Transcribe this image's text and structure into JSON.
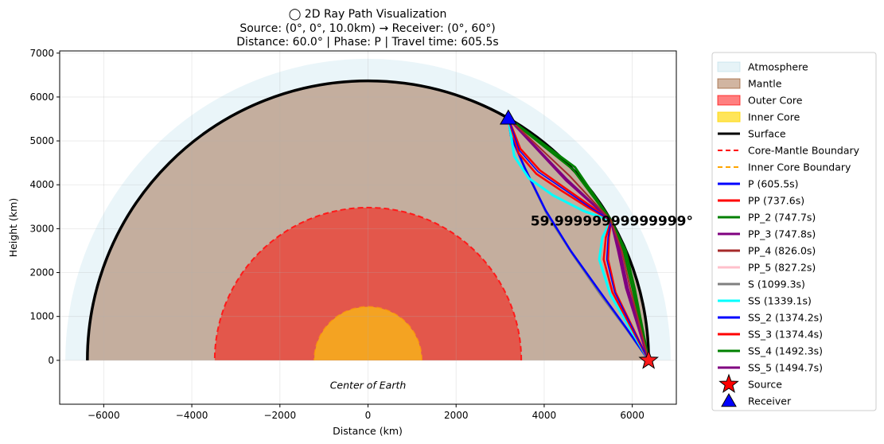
{
  "title": {
    "line1": "◯ 2D Ray Path Visualization",
    "line2": "Source: (0°, 0°, 10.0km) → Receiver: (0°, 60°)",
    "line3": "Distance: 60.0° | Phase: P | Travel time: 605.5s"
  },
  "chart_data": {
    "type": "line",
    "xlabel": "Distance (km)",
    "ylabel": "Height (km)",
    "xlim": [
      -7000,
      7000
    ],
    "ylim": [
      -1000,
      7050
    ],
    "xticks": [
      -6000,
      -4000,
      -2000,
      0,
      2000,
      4000,
      6000
    ],
    "yticks": [
      0,
      1000,
      2000,
      3000,
      4000,
      5000,
      6000,
      7000
    ],
    "grid": true,
    "legend_position": "outside-right",
    "earth": {
      "surface_radius_km": 6371,
      "atmosphere_radius_km": 6871,
      "cmb_radius_km": 3480,
      "inner_core_radius_km": 1220
    },
    "source": {
      "x": 6371,
      "y": 0
    },
    "receiver": {
      "x": 3186,
      "y": 5517
    },
    "distance_annotation": {
      "text": "59.99999999999999°",
      "x": 3690,
      "y": 3180
    },
    "center_label": {
      "text": "Center of Earth",
      "x": 0,
      "y": -650
    },
    "legend": [
      {
        "label": "Atmosphere",
        "kind": "patch",
        "color": "#add8e6",
        "opacity": 0.3
      },
      {
        "label": "Mantle",
        "kind": "patch",
        "color": "#8b4513",
        "opacity": 0.4
      },
      {
        "label": "Outer Core",
        "kind": "patch",
        "color": "#ff0000",
        "opacity": 0.5
      },
      {
        "label": "Inner Core",
        "kind": "patch",
        "color": "#ffd700",
        "opacity": 0.65
      },
      {
        "label": "Surface",
        "kind": "line",
        "color": "#000000",
        "width": 3
      },
      {
        "label": "Core-Mantle Boundary",
        "kind": "dash",
        "color": "#ff0000",
        "width": 2
      },
      {
        "label": "Inner Core Boundary",
        "kind": "dash",
        "color": "#ffa500",
        "width": 2
      },
      {
        "label": "P (605.5s)",
        "kind": "line",
        "color": "#0000ff",
        "width": 3
      },
      {
        "label": "PP (737.6s)",
        "kind": "line",
        "color": "#ff0000",
        "width": 3
      },
      {
        "label": "PP_2 (747.7s)",
        "kind": "line",
        "color": "#008000",
        "width": 3
      },
      {
        "label": "PP_3 (747.8s)",
        "kind": "line",
        "color": "#800080",
        "width": 3
      },
      {
        "label": "PP_4 (826.0s)",
        "kind": "line",
        "color": "#a52a2a",
        "width": 3
      },
      {
        "label": "PP_5 (827.2s)",
        "kind": "line",
        "color": "#ffc0cb",
        "width": 3
      },
      {
        "label": "S (1099.3s)",
        "kind": "line",
        "color": "#808080",
        "width": 3
      },
      {
        "label": "SS (1339.1s)",
        "kind": "line",
        "color": "#00ffff",
        "width": 3
      },
      {
        "label": "SS_2 (1374.2s)",
        "kind": "line",
        "color": "#0000ff",
        "width": 3
      },
      {
        "label": "SS_3 (1374.4s)",
        "kind": "line",
        "color": "#ff0000",
        "width": 3
      },
      {
        "label": "SS_4 (1492.3s)",
        "kind": "line",
        "color": "#008000",
        "width": 3
      },
      {
        "label": "SS_5 (1494.7s)",
        "kind": "line",
        "color": "#800080",
        "width": 3
      },
      {
        "label": "Source",
        "kind": "star",
        "color": "#ff0000"
      },
      {
        "label": "Receiver",
        "kind": "triangle",
        "color": "#0000ff"
      }
    ],
    "series": [
      {
        "name": "S (1099.3s)",
        "color": "#808080",
        "width": 3,
        "path": [
          [
            6371,
            0
          ],
          [
            5880,
            700
          ],
          [
            5280,
            1500
          ],
          [
            4660,
            2400
          ],
          [
            4080,
            3300
          ],
          [
            3600,
            4300
          ],
          [
            3250,
            5100
          ],
          [
            3186,
            5517
          ]
        ]
      },
      {
        "name": "P (605.5s)",
        "color": "#0000ff",
        "width": 2.5,
        "path": [
          [
            6371,
            0
          ],
          [
            5860,
            740
          ],
          [
            5240,
            1600
          ],
          [
            4600,
            2500
          ],
          [
            4030,
            3420
          ],
          [
            3560,
            4380
          ],
          [
            3240,
            5120
          ],
          [
            3186,
            5517
          ]
        ]
      },
      {
        "name": "SS (1339.1s)",
        "color": "#00ffff",
        "width": 3,
        "path": [
          [
            6371,
            0
          ],
          [
            5500,
            1500
          ],
          [
            5250,
            2300
          ],
          [
            5320,
            2800
          ],
          [
            5517,
            3186
          ],
          [
            4900,
            3400
          ],
          [
            4200,
            3760
          ],
          [
            3650,
            4150
          ],
          [
            3320,
            4650
          ],
          [
            3186,
            5517
          ]
        ]
      },
      {
        "name": "PP (737.6s)",
        "color": "#ff0000",
        "width": 2.5,
        "path": [
          [
            6371,
            0
          ],
          [
            5550,
            1550
          ],
          [
            5350,
            2300
          ],
          [
            5400,
            2800
          ],
          [
            5517,
            3186
          ],
          [
            5000,
            3480
          ],
          [
            4400,
            3860
          ],
          [
            3820,
            4250
          ],
          [
            3420,
            4720
          ],
          [
            3186,
            5517
          ]
        ]
      },
      {
        "name": "SS_3 (1374.4s)",
        "color": "#ff0000",
        "width": 2.5,
        "path": [
          [
            6371,
            0
          ],
          [
            5620,
            1550
          ],
          [
            5450,
            2300
          ],
          [
            5470,
            2800
          ],
          [
            5517,
            3186
          ],
          [
            5050,
            3520
          ],
          [
            4480,
            3920
          ],
          [
            3900,
            4330
          ],
          [
            3460,
            4820
          ],
          [
            3186,
            5517
          ]
        ]
      },
      {
        "name": "SS_2 (1374.2s)",
        "color": "#0000ff",
        "width": 1.5,
        "path": [
          [
            6371,
            0
          ],
          [
            5600,
            1550
          ],
          [
            5420,
            2300
          ],
          [
            5450,
            2800
          ],
          [
            5517,
            3186
          ],
          [
            5020,
            3500
          ],
          [
            4440,
            3900
          ],
          [
            3860,
            4300
          ],
          [
            3440,
            4780
          ],
          [
            3186,
            5517
          ]
        ]
      },
      {
        "name": "SS_5 (1494.7s)",
        "color": "#800080",
        "width": 3,
        "path": [
          [
            6371,
            0
          ],
          [
            5860,
            1650
          ],
          [
            5680,
            2500
          ],
          [
            5517,
            3186
          ],
          [
            4500,
            4100
          ],
          [
            3186,
            5517
          ]
        ]
      },
      {
        "name": "PP_3 (747.8s)",
        "color": "#800080",
        "width": 2.5,
        "path": [
          [
            6371,
            0
          ],
          [
            5900,
            1650
          ],
          [
            5720,
            2500
          ],
          [
            5517,
            3186
          ],
          [
            4520,
            4120
          ],
          [
            3186,
            5517
          ]
        ]
      },
      {
        "name": "SS_4 (1492.3s)",
        "color": "#008000",
        "width": 3,
        "path": [
          [
            6371,
            0
          ],
          [
            6050,
            1650
          ],
          [
            5850,
            2500
          ],
          [
            5517,
            3186
          ],
          [
            4700,
            4400
          ],
          [
            3186,
            5517
          ]
        ]
      },
      {
        "name": "PP_2 (747.7s)",
        "color": "#008000",
        "width": 2.5,
        "path": [
          [
            6371,
            0
          ],
          [
            6000,
            1650
          ],
          [
            5800,
            2500
          ],
          [
            5517,
            3186
          ],
          [
            4650,
            4350
          ],
          [
            3186,
            5517
          ]
        ]
      },
      {
        "name": "PP_4 (826.0s)",
        "color": "#a52a2a",
        "width": 2,
        "path": [
          [
            6371,
            0
          ],
          [
            5950,
            1650
          ],
          [
            5760,
            2500
          ],
          [
            5517,
            3186
          ],
          [
            4580,
            4200
          ],
          [
            3186,
            5517
          ]
        ]
      }
    ]
  }
}
